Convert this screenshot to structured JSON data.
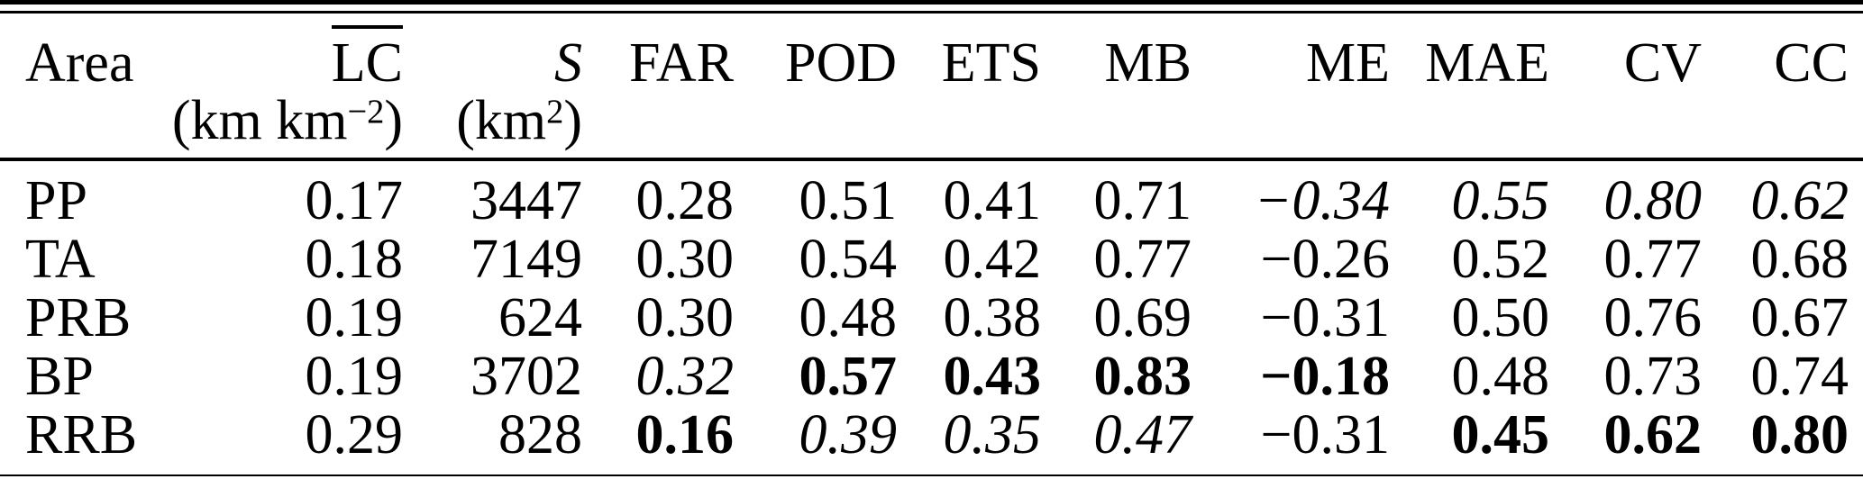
{
  "table": {
    "columns": [
      {
        "key": "area",
        "label": "Area"
      },
      {
        "key": "lc",
        "label": "LC",
        "overline": true
      },
      {
        "key": "s",
        "label": "S",
        "italic": true
      },
      {
        "key": "far",
        "label": "FAR"
      },
      {
        "key": "pod",
        "label": "POD"
      },
      {
        "key": "ets",
        "label": "ETS"
      },
      {
        "key": "mb",
        "label": "MB"
      },
      {
        "key": "me",
        "label": "ME"
      },
      {
        "key": "mae",
        "label": "MAE"
      },
      {
        "key": "cv",
        "label": "CV"
      },
      {
        "key": "cc",
        "label": "CC"
      }
    ],
    "units": {
      "lc": {
        "pre": "(km km",
        "sup": "−2",
        "post": ")"
      },
      "s": {
        "pre": "(km",
        "sup": "2",
        "post": ")"
      }
    },
    "rows": [
      {
        "area": "PP",
        "values": [
          "0.17",
          "3447",
          "0.28",
          "0.51",
          "0.41",
          "0.71",
          "−0.34",
          "0.55",
          "0.80",
          "0.62"
        ],
        "styles": [
          "",
          "",
          "",
          "",
          "",
          "",
          "i",
          "i",
          "i",
          "i"
        ]
      },
      {
        "area": "TA",
        "values": [
          "0.18",
          "7149",
          "0.30",
          "0.54",
          "0.42",
          "0.77",
          "−0.26",
          "0.52",
          "0.77",
          "0.68"
        ],
        "styles": [
          "",
          "",
          "",
          "",
          "",
          "",
          "",
          "",
          "",
          ""
        ]
      },
      {
        "area": "PRB",
        "values": [
          "0.19",
          "624",
          "0.30",
          "0.48",
          "0.38",
          "0.69",
          "−0.31",
          "0.50",
          "0.76",
          "0.67"
        ],
        "styles": [
          "",
          "",
          "",
          "",
          "",
          "",
          "",
          "",
          "",
          ""
        ]
      },
      {
        "area": "BP",
        "values": [
          "0.19",
          "3702",
          "0.32",
          "0.57",
          "0.43",
          "0.83",
          "−0.18",
          "0.48",
          "0.73",
          "0.74"
        ],
        "styles": [
          "",
          "",
          "i",
          "b",
          "b",
          "b",
          "b",
          "",
          "",
          ""
        ]
      },
      {
        "area": "RRB",
        "values": [
          "0.29",
          "828",
          "0.16",
          "0.39",
          "0.35",
          "0.47",
          "−0.31",
          "0.45",
          "0.62",
          "0.80"
        ],
        "styles": [
          "",
          "",
          "b",
          "i",
          "i",
          "i",
          "",
          "b",
          "b",
          "b"
        ]
      }
    ],
    "colors": {
      "text": "#000000",
      "background": "#ffffff",
      "rule": "#000000"
    }
  }
}
